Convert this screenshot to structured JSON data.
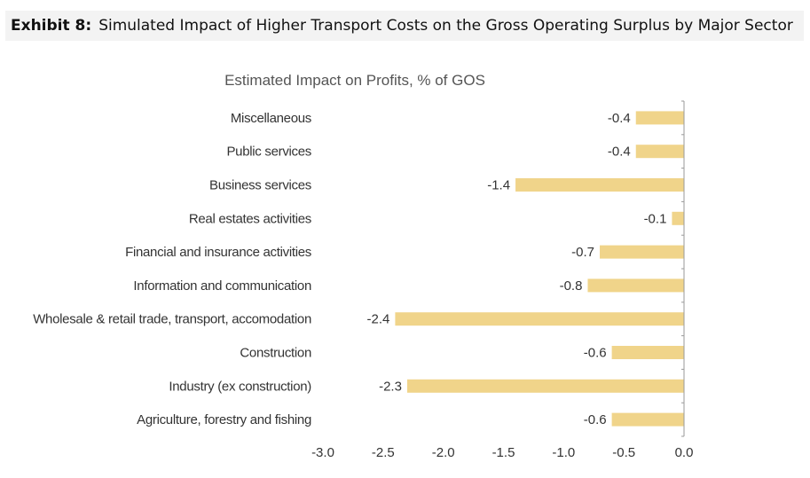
{
  "header": {
    "exhibit_label": "Exhibit 8:",
    "exhibit_title": "Simulated Impact of Higher Transport Costs on the Gross Operating Surplus by Major Sector"
  },
  "colors": {
    "bar": "#f0d48a",
    "axis": "#9a9a9a",
    "header_bg": "#f3f3f3"
  },
  "chart_data": {
    "type": "bar",
    "orientation": "horizontal",
    "title": "Estimated Impact on Profits, % of GOS",
    "xlabel": "",
    "ylabel": "",
    "xlim": [
      -3.0,
      0.0
    ],
    "xticks": [
      -3.0,
      -2.5,
      -2.0,
      -1.5,
      -1.0,
      -0.5,
      0.0
    ],
    "xtick_labels": [
      "-3.0",
      "-2.5",
      "-2.0",
      "-1.5",
      "-1.0",
      "-0.5",
      "0.0"
    ],
    "grid": false,
    "legend": "none",
    "categories": [
      "Miscellaneous",
      "Public services",
      "Business services",
      "Real estates activities",
      "Financial and insurance activities",
      "Information and communication",
      "Wholesale & retail trade, transport, accomodation",
      "Construction",
      "Industry (ex construction)",
      "Agriculture, forestry and fishing"
    ],
    "values": [
      -0.4,
      -0.4,
      -1.4,
      -0.1,
      -0.7,
      -0.8,
      -2.4,
      -0.6,
      -2.3,
      -0.6
    ],
    "value_labels": [
      "-0.4",
      "-0.4",
      "-1.4",
      "-0.1",
      "-0.7",
      "-0.8",
      "-2.4",
      "-0.6",
      "-2.3",
      "-0.6"
    ]
  }
}
